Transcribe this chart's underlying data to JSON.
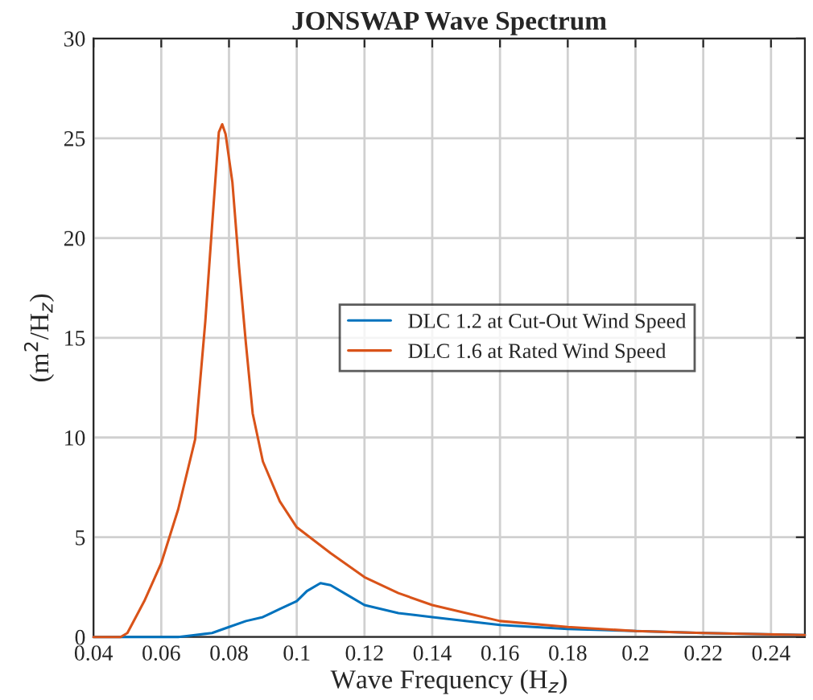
{
  "chart_data": {
    "type": "line",
    "title": "JONSWAP Wave Spectrum",
    "xlabel": "Wave Frequency (H$_{z}$)",
    "ylabel": "(m$^{2}$/H$_{z}$)",
    "xlim": [
      0.04,
      0.25
    ],
    "xticks": [
      0.04,
      0.06,
      0.08,
      0.1,
      0.12,
      0.14,
      0.16,
      0.18,
      0.2,
      0.22,
      0.24
    ],
    "ylim": [
      0,
      30
    ],
    "yticks": [
      0,
      5,
      10,
      15,
      20,
      25,
      30
    ],
    "grid": true,
    "legend": "right",
    "series": [
      {
        "name": "DLC 1.2 at Cut-Out Wind Speed",
        "color": "#0072bd",
        "x": [
          0.04,
          0.06,
          0.065,
          0.07,
          0.075,
          0.08,
          0.085,
          0.09,
          0.095,
          0.1,
          0.103,
          0.107,
          0.11,
          0.115,
          0.12,
          0.13,
          0.14,
          0.16,
          0.18,
          0.2,
          0.22,
          0.25
        ],
        "values": [
          0,
          0,
          0,
          0.1,
          0.2,
          0.5,
          0.8,
          1.0,
          1.4,
          1.8,
          2.3,
          2.7,
          2.6,
          2.1,
          1.6,
          1.2,
          1.0,
          0.6,
          0.4,
          0.3,
          0.2,
          0.1
        ]
      },
      {
        "name": "DLC 1.6 at Rated Wind Speed",
        "color": "#d95319",
        "x": [
          0.04,
          0.048,
          0.05,
          0.055,
          0.06,
          0.065,
          0.07,
          0.073,
          0.075,
          0.077,
          0.078,
          0.079,
          0.081,
          0.083,
          0.085,
          0.087,
          0.09,
          0.095,
          0.1,
          0.11,
          0.12,
          0.13,
          0.14,
          0.16,
          0.18,
          0.2,
          0.22,
          0.25
        ],
        "values": [
          0,
          0,
          0.2,
          1.8,
          3.7,
          6.4,
          9.9,
          15.8,
          20.6,
          25.3,
          25.7,
          25.2,
          22.8,
          18.5,
          14.7,
          11.2,
          8.8,
          6.8,
          5.5,
          4.2,
          3.0,
          2.2,
          1.6,
          0.8,
          0.5,
          0.3,
          0.2,
          0.1
        ]
      }
    ]
  }
}
